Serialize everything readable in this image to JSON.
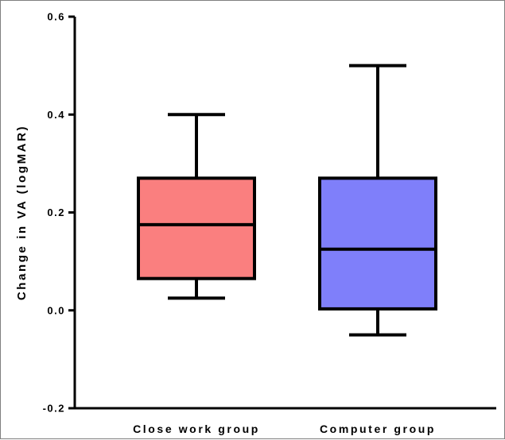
{
  "chart_data": {
    "type": "boxplot",
    "title": "",
    "xlabel": "",
    "ylabel": "Change in VA (logMAR)",
    "ylim": [
      -0.2,
      0.6
    ],
    "yticks": [
      -0.2,
      0.0,
      0.2,
      0.4,
      0.6
    ],
    "ytick_labels": [
      "-0.2",
      "0.0",
      "0.2",
      "0.4",
      "0.6"
    ],
    "grid": false,
    "categories": [
      "Close work group",
      "Computer group"
    ],
    "boxes": [
      {
        "category": "Close work group",
        "min": 0.025,
        "q1": 0.065,
        "median": 0.175,
        "q3": 0.27,
        "max": 0.4,
        "color": "#fa7f7f"
      },
      {
        "category": "Computer group",
        "min": -0.05,
        "q1": 0.003,
        "median": 0.125,
        "q3": 0.27,
        "max": 0.5,
        "color": "#7f7ffa"
      }
    ]
  }
}
